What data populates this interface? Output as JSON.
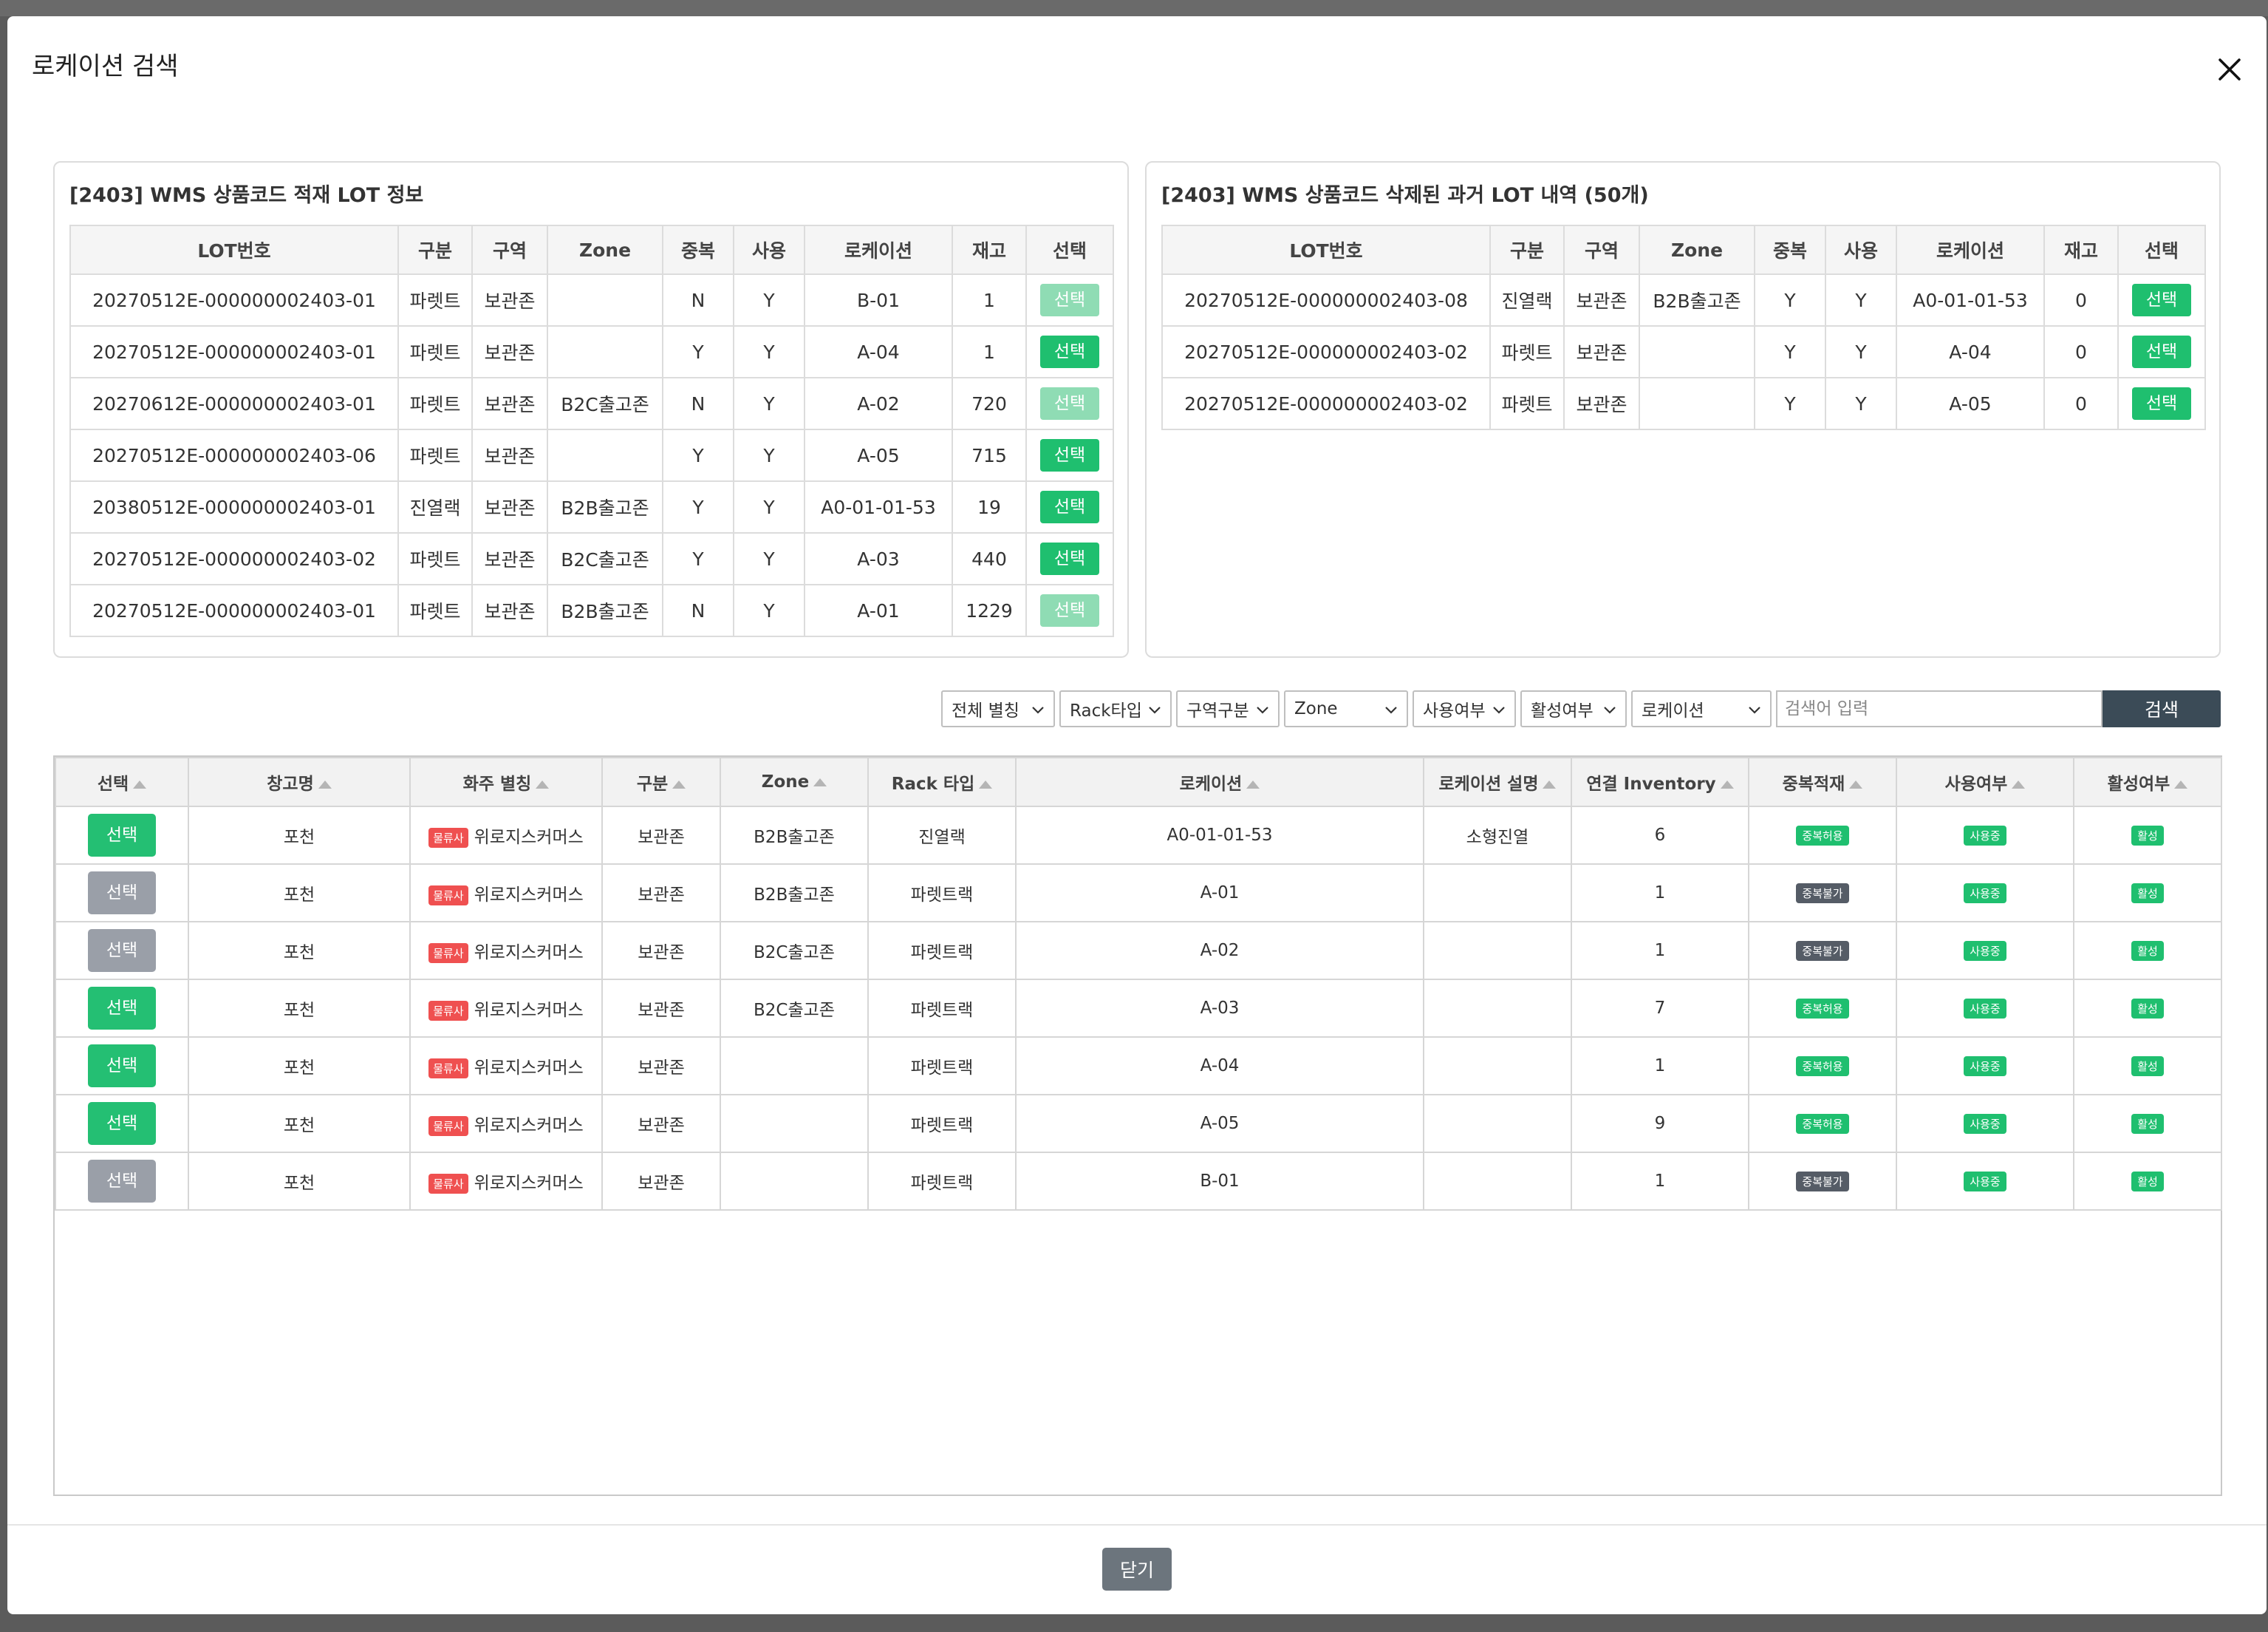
{
  "modal": {
    "title": "로케이션 검색",
    "close_label": "닫기"
  },
  "lot_table_columns": [
    "LOT번호",
    "구분",
    "구역",
    "Zone",
    "중복",
    "사용",
    "로케이션",
    "재고",
    "선택"
  ],
  "left_panel": {
    "title": "[2403] WMS 상품코드 적재 LOT 정보",
    "rows": [
      {
        "lot": "20270512E-000000002403-01",
        "type": "파렛트",
        "area": "보관존",
        "zone": "",
        "dup": "N",
        "use": "Y",
        "loc": "B-01",
        "stock": "1",
        "btn": "선택",
        "enabled": false
      },
      {
        "lot": "20270512E-000000002403-01",
        "type": "파렛트",
        "area": "보관존",
        "zone": "",
        "dup": "Y",
        "use": "Y",
        "loc": "A-04",
        "stock": "1",
        "btn": "선택",
        "enabled": true
      },
      {
        "lot": "20270612E-000000002403-01",
        "type": "파렛트",
        "area": "보관존",
        "zone": "B2C출고존",
        "dup": "N",
        "use": "Y",
        "loc": "A-02",
        "stock": "720",
        "btn": "선택",
        "enabled": false
      },
      {
        "lot": "20270512E-000000002403-06",
        "type": "파렛트",
        "area": "보관존",
        "zone": "",
        "dup": "Y",
        "use": "Y",
        "loc": "A-05",
        "stock": "715",
        "btn": "선택",
        "enabled": true
      },
      {
        "lot": "20380512E-000000002403-01",
        "type": "진열랙",
        "area": "보관존",
        "zone": "B2B출고존",
        "dup": "Y",
        "use": "Y",
        "loc": "A0-01-01-53",
        "stock": "19",
        "btn": "선택",
        "enabled": true
      },
      {
        "lot": "20270512E-000000002403-02",
        "type": "파렛트",
        "area": "보관존",
        "zone": "B2C출고존",
        "dup": "Y",
        "use": "Y",
        "loc": "A-03",
        "stock": "440",
        "btn": "선택",
        "enabled": true
      },
      {
        "lot": "20270512E-000000002403-01",
        "type": "파렛트",
        "area": "보관존",
        "zone": "B2B출고존",
        "dup": "N",
        "use": "Y",
        "loc": "A-01",
        "stock": "1229",
        "btn": "선택",
        "enabled": false
      }
    ]
  },
  "right_panel": {
    "title": "[2403] WMS 상품코드 삭제된 과거 LOT 내역 (50개)",
    "rows": [
      {
        "lot": "20270512E-000000002403-08",
        "type": "진열랙",
        "area": "보관존",
        "zone": "B2B출고존",
        "dup": "Y",
        "use": "Y",
        "loc": "A0-01-01-53",
        "stock": "0",
        "btn": "선택",
        "enabled": true
      },
      {
        "lot": "20270512E-000000002403-02",
        "type": "파렛트",
        "area": "보관존",
        "zone": "",
        "dup": "Y",
        "use": "Y",
        "loc": "A-04",
        "stock": "0",
        "btn": "선택",
        "enabled": true
      },
      {
        "lot": "20270512E-000000002403-02",
        "type": "파렛트",
        "area": "보관존",
        "zone": "",
        "dup": "Y",
        "use": "Y",
        "loc": "A-05",
        "stock": "0",
        "btn": "선택",
        "enabled": true
      }
    ]
  },
  "filters": {
    "dropdowns": [
      "전체 별칭",
      "Rack타입",
      "구역구분",
      "Zone",
      "사용여부",
      "활성여부",
      "로케이션"
    ],
    "search_placeholder": "검색어 입력",
    "search_button": "검색"
  },
  "location_table": {
    "columns": [
      "선택",
      "창고명",
      "화주 별칭",
      "구분",
      "Zone",
      "Rack 타입",
      "로케이션",
      "로케이션 설명",
      "연결 Inventory",
      "중복적재",
      "사용여부",
      "활성여부"
    ],
    "rows": [
      {
        "btn": "선택",
        "btn_style": "green",
        "warehouse": "포천",
        "owner_badge": "물류사",
        "owner": "위로지스커머스",
        "area": "보관존",
        "zone": "B2B출고존",
        "rack": "진열랙",
        "loc": "A0-01-01-53",
        "desc": "소형진열",
        "inventory": "6",
        "dup": "중복허용",
        "dup_style": "g",
        "use": "사용중",
        "active": "활성"
      },
      {
        "btn": "선택",
        "btn_style": "gray",
        "warehouse": "포천",
        "owner_badge": "물류사",
        "owner": "위로지스커머스",
        "area": "보관존",
        "zone": "B2B출고존",
        "rack": "파렛트랙",
        "loc": "A-01",
        "desc": "",
        "inventory": "1",
        "dup": "중복불가",
        "dup_style": "d",
        "use": "사용중",
        "active": "활성"
      },
      {
        "btn": "선택",
        "btn_style": "gray",
        "warehouse": "포천",
        "owner_badge": "물류사",
        "owner": "위로지스커머스",
        "area": "보관존",
        "zone": "B2C출고존",
        "rack": "파렛트랙",
        "loc": "A-02",
        "desc": "",
        "inventory": "1",
        "dup": "중복불가",
        "dup_style": "d",
        "use": "사용중",
        "active": "활성"
      },
      {
        "btn": "선택",
        "btn_style": "green",
        "warehouse": "포천",
        "owner_badge": "물류사",
        "owner": "위로지스커머스",
        "area": "보관존",
        "zone": "B2C출고존",
        "rack": "파렛트랙",
        "loc": "A-03",
        "desc": "",
        "inventory": "7",
        "dup": "중복허용",
        "dup_style": "g",
        "use": "사용중",
        "active": "활성"
      },
      {
        "btn": "선택",
        "btn_style": "green",
        "warehouse": "포천",
        "owner_badge": "물류사",
        "owner": "위로지스커머스",
        "area": "보관존",
        "zone": "",
        "rack": "파렛트랙",
        "loc": "A-04",
        "desc": "",
        "inventory": "1",
        "dup": "중복허용",
        "dup_style": "g",
        "use": "사용중",
        "active": "활성"
      },
      {
        "btn": "선택",
        "btn_style": "green",
        "warehouse": "포천",
        "owner_badge": "물류사",
        "owner": "위로지스커머스",
        "area": "보관존",
        "zone": "",
        "rack": "파렛트랙",
        "loc": "A-05",
        "desc": "",
        "inventory": "9",
        "dup": "중복허용",
        "dup_style": "g",
        "use": "사용중",
        "active": "활성"
      },
      {
        "btn": "선택",
        "btn_style": "gray",
        "warehouse": "포천",
        "owner_badge": "물류사",
        "owner": "위로지스커머스",
        "area": "보관존",
        "zone": "",
        "rack": "파렛트랙",
        "loc": "B-01",
        "desc": "",
        "inventory": "1",
        "dup": "중복불가",
        "dup_style": "d",
        "use": "사용중",
        "active": "활성"
      }
    ]
  },
  "colors": {
    "primary_green": "#1fbf6f",
    "disabled_green": "#8fdcb4",
    "gray_button": "#9a9fa8",
    "search_button": "#3b4b57",
    "owner_badge": "#ef5050"
  }
}
